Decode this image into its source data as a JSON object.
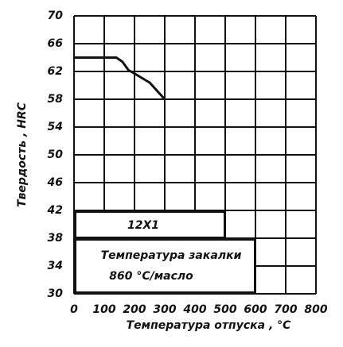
{
  "chart_data": {
    "type": "line",
    "x_label": "Температура отпуска , °С",
    "y_label": "Твердость , HRC",
    "x": [
      0,
      140,
      160,
      180,
      200,
      250,
      300
    ],
    "series": [
      {
        "color": "#111111",
        "values": [
          64,
          64,
          63.4,
          62.2,
          61.7,
          60.4,
          58
        ]
      }
    ],
    "xlim": [
      0,
      800
    ],
    "xticks": [
      0,
      100,
      200,
      300,
      400,
      500,
      600,
      700,
      800
    ],
    "ylim": [
      30,
      70
    ],
    "yticks": [
      30,
      34,
      38,
      42,
      46,
      50,
      54,
      58,
      62,
      66,
      70
    ],
    "grid": true,
    "annotations": [
      "12Х1",
      "Температура закалки",
      "860 °С/масло"
    ]
  }
}
